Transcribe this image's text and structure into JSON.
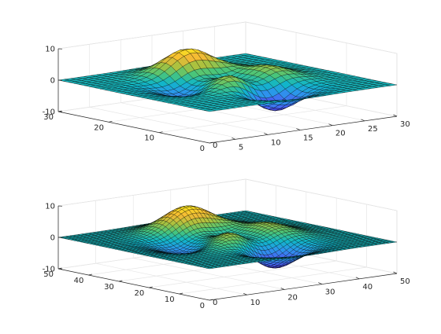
{
  "chart_data": [
    {
      "type": "surface",
      "function": "peaks",
      "grid_points": 30,
      "colormap": [
        "#3e26a8",
        "#4763f3",
        "#2c96ec",
        "#10b6c8",
        "#4ac579",
        "#a9c23f",
        "#f5b935",
        "#fae71e"
      ],
      "x_ticks": [
        "5",
        "10",
        "15",
        "20",
        "25",
        "30"
      ],
      "y_ticks": [
        "0",
        "10",
        "20",
        "30"
      ],
      "z_ticks": [
        "10",
        "0",
        "-10"
      ],
      "xlim": [
        1,
        30
      ],
      "ylim": [
        0,
        30
      ],
      "zlim": [
        -10,
        10
      ],
      "grid": true
    },
    {
      "type": "surface",
      "function": "peaks",
      "grid_points": 49,
      "colormap": [
        "#3e26a8",
        "#4763f3",
        "#2c96ec",
        "#10b6c8",
        "#4ac579",
        "#a9c23f",
        "#f5b935",
        "#fae71e"
      ],
      "x_ticks": [
        "10",
        "20",
        "30",
        "40",
        "50"
      ],
      "y_ticks": [
        "0",
        "10",
        "20",
        "30",
        "40",
        "50"
      ],
      "z_ticks": [
        "10",
        "0",
        "-10"
      ],
      "xlim": [
        0,
        50
      ],
      "ylim": [
        0,
        50
      ],
      "zlim": [
        -10,
        10
      ],
      "grid": true
    }
  ]
}
